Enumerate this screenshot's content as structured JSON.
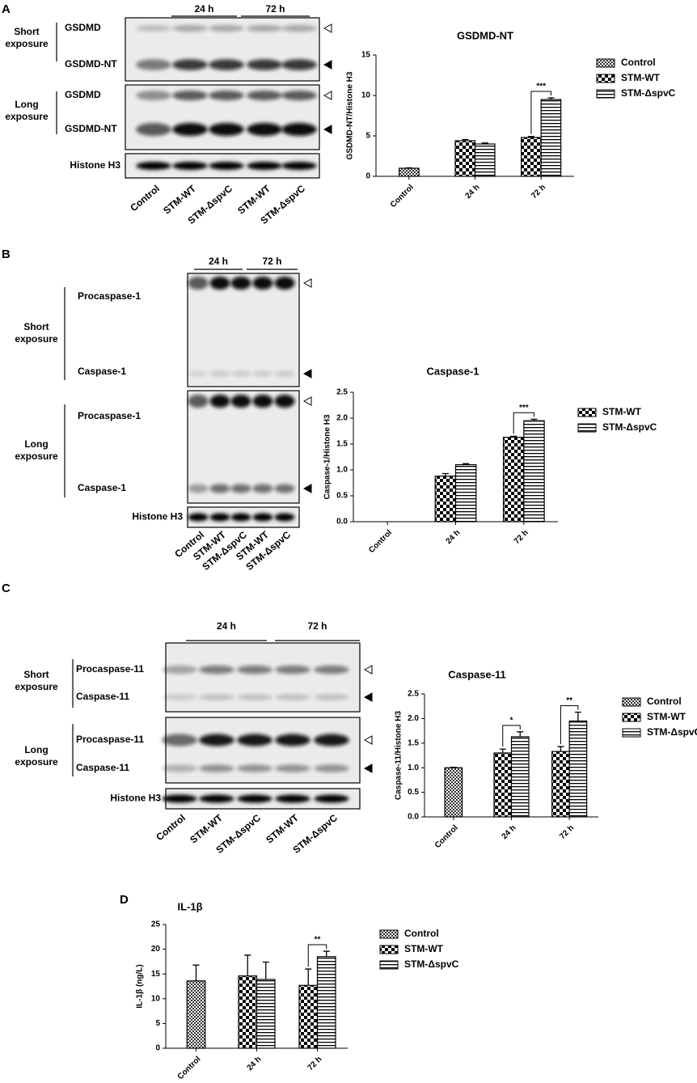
{
  "panels": [
    "A",
    "B",
    "C",
    "D"
  ],
  "blots": [
    {
      "groups": [
        "24 h",
        "72 h"
      ],
      "lanes": [
        "Control",
        "STM-WT",
        "STM-ΔspvC",
        "STM-WT",
        "STM-ΔspvC"
      ],
      "sections": [
        {
          "label": "Short exposure",
          "bands": [
            "GSDMD",
            "GSDMD-NT"
          ]
        },
        {
          "label": "Long exposure",
          "bands": [
            "GSDMD",
            "GSDMD-NT"
          ]
        }
      ],
      "loading": "Histone H3"
    },
    {
      "groups": [
        "24 h",
        "72 h"
      ],
      "lanes": [
        "Control",
        "STM-WT",
        "STM-ΔspvC",
        "STM-WT",
        "STM-ΔspvC"
      ],
      "sections": [
        {
          "label": "Short exposure",
          "bands": [
            "Procaspase-1",
            "Caspase-1"
          ]
        },
        {
          "label": "Long exposure",
          "bands": [
            "Procaspase-1",
            "Caspase-1"
          ]
        }
      ],
      "loading": "Histone H3"
    },
    {
      "groups": [
        "24 h",
        "72 h"
      ],
      "lanes": [
        "Control",
        "STM-WT",
        "STM-ΔspvC",
        "STM-WT",
        "STM-ΔspvC"
      ],
      "sections": [
        {
          "label": "Short exposure",
          "bands": [
            "Procaspase-11",
            "Caspase-11"
          ]
        },
        {
          "label": "Long exposure",
          "bands": [
            "Procaspase-11",
            "Caspase-11"
          ]
        }
      ],
      "loading": "Histone H3"
    }
  ],
  "chart_data": [
    {
      "type": "bar",
      "title": "GSDMD-NT",
      "ylabel": "GSDMD-NT/Histone H3",
      "categories": [
        "Control",
        "24 h",
        "72 h"
      ],
      "series": [
        {
          "name": "Control",
          "color": "#000000",
          "pattern": "dense-check",
          "values": [
            1.0,
            null,
            null
          ],
          "errors": [
            0.05,
            null,
            null
          ]
        },
        {
          "name": "STM-WT",
          "color": "#000000",
          "pattern": "check",
          "values": [
            null,
            4.4,
            4.8
          ],
          "errors": [
            null,
            0.15,
            0.12
          ]
        },
        {
          "name": "STM-ΔspvC",
          "color": "#000000",
          "pattern": "stripes",
          "values": [
            null,
            4.0,
            9.5
          ],
          "errors": [
            null,
            0.12,
            0.2
          ]
        }
      ],
      "ylim": [
        0,
        15
      ],
      "yticks": [
        0,
        5,
        10,
        15
      ],
      "annotations": [
        "***"
      ],
      "legend": "right"
    },
    {
      "type": "bar",
      "title": "Caspase-1",
      "ylabel": "Caspase-1/Histone H3",
      "categories": [
        "Control",
        "24 h",
        "72 h"
      ],
      "series": [
        {
          "name": "STM-WT",
          "color": "#000000",
          "pattern": "check",
          "values": [
            null,
            0.88,
            1.63
          ],
          "errors": [
            null,
            0.05,
            0.02
          ]
        },
        {
          "name": "STM-ΔspvC",
          "color": "#000000",
          "pattern": "stripes",
          "values": [
            null,
            1.1,
            1.95
          ],
          "errors": [
            null,
            0.02,
            0.03
          ]
        }
      ],
      "ylim": [
        0,
        2.5
      ],
      "yticks": [
        {
          "value": 0,
          "label": "0.0"
        },
        {
          "value": 0.5,
          "label": "0.5"
        },
        {
          "value": 1,
          "label": "1.0"
        },
        {
          "value": 1.5,
          "label": "1.5"
        },
        {
          "value": 2,
          "label": "2.0"
        },
        {
          "value": 2.5,
          "label": "2.5"
        }
      ],
      "annotations": [
        "***"
      ],
      "legend": "right"
    },
    {
      "type": "bar",
      "title": "Caspase-11",
      "ylabel": "Caspase-11/Histone H3",
      "categories": [
        "Control",
        "24 h",
        "72 h"
      ],
      "series": [
        {
          "name": "Control",
          "color": "#000000",
          "pattern": "dense-check",
          "values": [
            1.0,
            null,
            null
          ],
          "errors": [
            0.01,
            null,
            null
          ]
        },
        {
          "name": "STM-WT",
          "color": "#000000",
          "pattern": "check",
          "values": [
            null,
            1.3,
            1.33
          ],
          "errors": [
            null,
            0.08,
            0.1
          ]
        },
        {
          "name": "STM-ΔspvC",
          "color": "#000000",
          "pattern": "stripes",
          "values": [
            null,
            1.63,
            1.95
          ],
          "errors": [
            null,
            0.1,
            0.18
          ]
        }
      ],
      "ylim": [
        0,
        2.5
      ],
      "yticks": [
        {
          "value": 0,
          "label": "0.0"
        },
        {
          "value": 0.5,
          "label": "0.5"
        },
        {
          "value": 1,
          "label": "1.0"
        },
        {
          "value": 1.5,
          "label": "1.5"
        },
        {
          "value": 2,
          "label": "2.0"
        },
        {
          "value": 2.5,
          "label": "2.5"
        }
      ],
      "annotations": [
        "*",
        "**"
      ],
      "legend": "right"
    },
    {
      "type": "bar",
      "title": "IL-1β",
      "ylabel": "IL-1β (ng/L)",
      "categories": [
        "Control",
        "24 h",
        "72 h"
      ],
      "series": [
        {
          "name": "Control",
          "color": "#000000",
          "pattern": "dense-check",
          "values": [
            13.6,
            null,
            null
          ],
          "errors": [
            3.2,
            null,
            null
          ]
        },
        {
          "name": "STM-WT",
          "color": "#000000",
          "pattern": "check",
          "values": [
            null,
            14.6,
            12.7
          ],
          "errors": [
            null,
            4.2,
            3.3
          ]
        },
        {
          "name": "STM-ΔspvC",
          "color": "#000000",
          "pattern": "stripes",
          "values": [
            null,
            13.9,
            18.5
          ],
          "errors": [
            null,
            3.5,
            1.1
          ]
        }
      ],
      "ylim": [
        0,
        25
      ],
      "yticks": [
        0,
        5,
        10,
        15,
        20,
        25
      ],
      "annotations": [
        "**"
      ],
      "legend": "right"
    }
  ]
}
